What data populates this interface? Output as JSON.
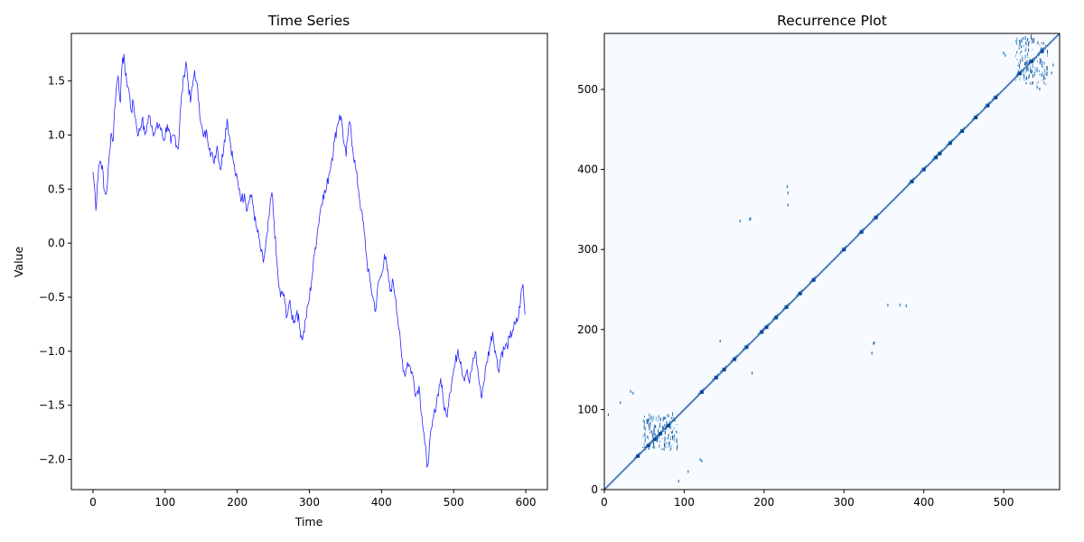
{
  "chart_data": [
    {
      "type": "line",
      "title": "Time Series",
      "xlabel": "Time",
      "ylabel": "Value",
      "xlim": [
        -30,
        630
      ],
      "ylim": [
        -2.28,
        1.94
      ],
      "xticks": [
        0,
        100,
        200,
        300,
        400,
        500,
        600
      ],
      "xtick_labels": [
        "0",
        "100",
        "200",
        "300",
        "400",
        "500",
        "600"
      ],
      "yticks": [
        -2.0,
        -1.5,
        -1.0,
        -0.5,
        0.0,
        0.5,
        1.0,
        1.5
      ],
      "ytick_labels": [
        "−2.0",
        "−1.5",
        "−1.0",
        "−0.5",
        "0.0",
        "0.5",
        "1.0",
        "1.5"
      ],
      "grid": false,
      "color": "#0000ff",
      "keypoints": [
        [
          0,
          0.66
        ],
        [
          3,
          0.45
        ],
        [
          4,
          0.3
        ],
        [
          6,
          0.55
        ],
        [
          8,
          0.72
        ],
        [
          10,
          0.76
        ],
        [
          13,
          0.72
        ],
        [
          15,
          0.5
        ],
        [
          18,
          0.45
        ],
        [
          20,
          0.55
        ],
        [
          23,
          0.85
        ],
        [
          25,
          1.02
        ],
        [
          28,
          0.95
        ],
        [
          30,
          1.25
        ],
        [
          33,
          1.48
        ],
        [
          35,
          1.55
        ],
        [
          38,
          1.3
        ],
        [
          40,
          1.62
        ],
        [
          43,
          1.75
        ],
        [
          45,
          1.55
        ],
        [
          50,
          1.4
        ],
        [
          53,
          1.22
        ],
        [
          56,
          1.3
        ],
        [
          60,
          1.1
        ],
        [
          63,
          1.0
        ],
        [
          68,
          1.15
        ],
        [
          72,
          1.0
        ],
        [
          78,
          1.18
        ],
        [
          85,
          1.02
        ],
        [
          92,
          1.1
        ],
        [
          98,
          0.95
        ],
        [
          103,
          1.1
        ],
        [
          108,
          0.92
        ],
        [
          113,
          1.0
        ],
        [
          118,
          0.87
        ],
        [
          122,
          1.3
        ],
        [
          126,
          1.55
        ],
        [
          129,
          1.68
        ],
        [
          132,
          1.48
        ],
        [
          135,
          1.3
        ],
        [
          138,
          1.45
        ],
        [
          141,
          1.6
        ],
        [
          143,
          1.5
        ],
        [
          147,
          1.3
        ],
        [
          150,
          1.1
        ],
        [
          153,
          0.98
        ],
        [
          158,
          1.02
        ],
        [
          162,
          0.88
        ],
        [
          167,
          0.75
        ],
        [
          172,
          0.9
        ],
        [
          177,
          0.68
        ],
        [
          182,
          0.95
        ],
        [
          186,
          1.15
        ],
        [
          190,
          0.95
        ],
        [
          194,
          0.78
        ],
        [
          198,
          0.62
        ],
        [
          203,
          0.5
        ],
        [
          206,
          0.4
        ],
        [
          210,
          0.46
        ],
        [
          214,
          0.31
        ],
        [
          218,
          0.45
        ],
        [
          222,
          0.35
        ],
        [
          226,
          0.15
        ],
        [
          230,
          0.05
        ],
        [
          233,
          -0.08
        ],
        [
          236,
          -0.18
        ],
        [
          239,
          -0.05
        ],
        [
          242,
          0.1
        ],
        [
          245,
          0.3
        ],
        [
          248,
          0.47
        ],
        [
          251,
          0.2
        ],
        [
          254,
          -0.1
        ],
        [
          257,
          -0.35
        ],
        [
          260,
          -0.5
        ],
        [
          263,
          -0.45
        ],
        [
          266,
          -0.55
        ],
        [
          269,
          -0.68
        ],
        [
          272,
          -0.55
        ],
        [
          275,
          -0.65
        ],
        [
          279,
          -0.72
        ],
        [
          283,
          -0.62
        ],
        [
          287,
          -0.8
        ],
        [
          291,
          -0.88
        ],
        [
          295,
          -0.7
        ],
        [
          299,
          -0.55
        ],
        [
          303,
          -0.35
        ],
        [
          307,
          -0.1
        ],
        [
          311,
          0.1
        ],
        [
          315,
          0.3
        ],
        [
          319,
          0.45
        ],
        [
          323,
          0.48
        ],
        [
          327,
          0.63
        ],
        [
          331,
          0.78
        ],
        [
          335,
          0.95
        ],
        [
          339,
          1.1
        ],
        [
          342,
          1.19
        ],
        [
          345,
          1.12
        ],
        [
          348,
          0.92
        ],
        [
          351,
          0.8
        ],
        [
          354,
          1.05
        ],
        [
          357,
          1.1
        ],
        [
          360,
          0.88
        ],
        [
          364,
          0.7
        ],
        [
          368,
          0.5
        ],
        [
          372,
          0.3
        ],
        [
          376,
          0.1
        ],
        [
          380,
          -0.18
        ],
        [
          384,
          -0.35
        ],
        [
          388,
          -0.5
        ],
        [
          392,
          -0.62
        ],
        [
          396,
          -0.35
        ],
        [
          400,
          -0.3
        ],
        [
          404,
          -0.1
        ],
        [
          408,
          -0.25
        ],
        [
          412,
          -0.45
        ],
        [
          416,
          -0.35
        ],
        [
          420,
          -0.52
        ],
        [
          424,
          -0.8
        ],
        [
          428,
          -1.05
        ],
        [
          432,
          -1.22
        ],
        [
          436,
          -1.1
        ],
        [
          440,
          -1.15
        ],
        [
          444,
          -1.25
        ],
        [
          448,
          -1.4
        ],
        [
          452,
          -1.32
        ],
        [
          456,
          -1.6
        ],
        [
          460,
          -1.85
        ],
        [
          463,
          -2.07
        ],
        [
          466,
          -1.92
        ],
        [
          470,
          -1.7
        ],
        [
          474,
          -1.55
        ],
        [
          478,
          -1.4
        ],
        [
          482,
          -1.25
        ],
        [
          486,
          -1.48
        ],
        [
          490,
          -1.6
        ],
        [
          494,
          -1.4
        ],
        [
          498,
          -1.25
        ],
        [
          502,
          -1.12
        ],
        [
          506,
          -0.98
        ],
        [
          510,
          -1.1
        ],
        [
          514,
          -1.25
        ],
        [
          518,
          -1.18
        ],
        [
          522,
          -1.3
        ],
        [
          526,
          -1.12
        ],
        [
          530,
          -1.0
        ],
        [
          534,
          -1.2
        ],
        [
          538,
          -1.42
        ],
        [
          542,
          -1.28
        ],
        [
          546,
          -1.1
        ],
        [
          550,
          -0.96
        ],
        [
          554,
          -0.82
        ],
        [
          558,
          -1.0
        ],
        [
          562,
          -1.18
        ],
        [
          566,
          -1.02
        ],
        [
          570,
          -0.98
        ],
        [
          574,
          -0.95
        ],
        [
          578,
          -0.88
        ],
        [
          582,
          -0.8
        ],
        [
          586,
          -0.75
        ],
        [
          590,
          -0.68
        ],
        [
          593,
          -0.5
        ],
        [
          596,
          -0.38
        ],
        [
          599,
          -0.66
        ]
      ]
    },
    {
      "type": "heatmap",
      "title": "Recurrence Plot",
      "xlabel": "",
      "ylabel": "",
      "xlim": [
        0,
        570
      ],
      "ylim": [
        0,
        570
      ],
      "xticks": [
        0,
        100,
        200,
        300,
        400,
        500
      ],
      "xtick_labels": [
        "0",
        "100",
        "200",
        "300",
        "400",
        "500"
      ],
      "yticks": [
        0,
        100,
        200,
        300,
        400,
        500
      ],
      "ytick_labels": [
        "0",
        "100",
        "200",
        "300",
        "400",
        "500"
      ],
      "grid": false,
      "background_color": "#f7fbff",
      "colors": [
        "#084594",
        "#2171b5",
        "#6baed6",
        "#c6dbef"
      ],
      "diagonal": [
        0,
        570
      ],
      "dense_blocks": [
        {
          "x": [
            48,
            92
          ],
          "y": [
            48,
            92
          ]
        },
        {
          "x": [
            515,
            555
          ],
          "y": [
            505,
            565
          ]
        }
      ],
      "diagonal_clusters": [
        42,
        55,
        63,
        70,
        80,
        122,
        140,
        150,
        163,
        178,
        197,
        203,
        215,
        228,
        245,
        262,
        300,
        322,
        340,
        385,
        400,
        415,
        420,
        433,
        448,
        465,
        480,
        490,
        520,
        535,
        548
      ],
      "sparse_points": [
        [
          5,
          93
        ],
        [
          20,
          108
        ],
        [
          33,
          122
        ],
        [
          36,
          120
        ],
        [
          122,
          35
        ],
        [
          120,
          37
        ],
        [
          93,
          10
        ],
        [
          105,
          22
        ],
        [
          170,
          335
        ],
        [
          183,
          338
        ],
        [
          229,
          378
        ],
        [
          230,
          370
        ],
        [
          335,
          170
        ],
        [
          338,
          183
        ],
        [
          378,
          229
        ],
        [
          370,
          230
        ],
        [
          145,
          185
        ],
        [
          185,
          145
        ],
        [
          355,
          230
        ],
        [
          230,
          355
        ],
        [
          337,
          182
        ],
        [
          182,
          337
        ],
        [
          500,
          545
        ],
        [
          545,
          500
        ],
        [
          560,
          520
        ],
        [
          520,
          560
        ],
        [
          530,
          562
        ],
        [
          562,
          530
        ],
        [
          542,
          502
        ],
        [
          502,
          542
        ]
      ]
    }
  ]
}
